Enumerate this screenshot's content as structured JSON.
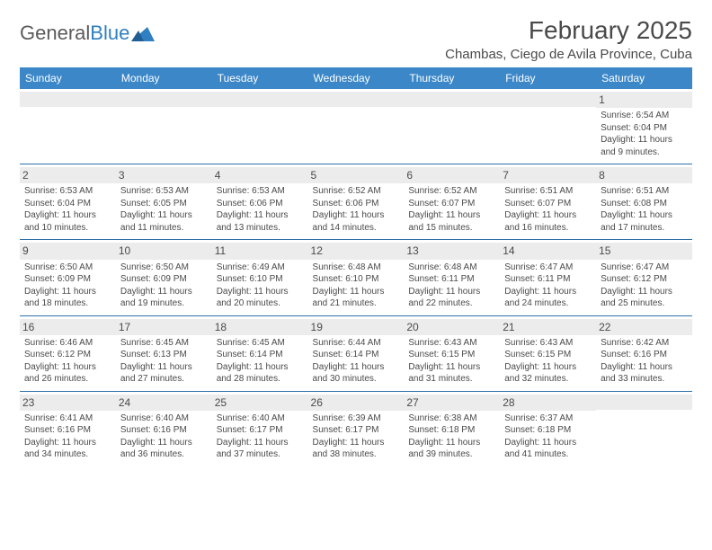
{
  "logo": {
    "word1": "General",
    "word2": "Blue"
  },
  "title": "February 2025",
  "location": "Chambas, Ciego de Avila Province, Cuba",
  "colors": {
    "header_bg": "#3b87c8",
    "header_text": "#ffffff",
    "rule": "#2f6fa8",
    "daynum_bg": "#ececec",
    "body_text": "#4a4a4a",
    "logo_blue": "#2f7fc1"
  },
  "weekdays": [
    "Sunday",
    "Monday",
    "Tuesday",
    "Wednesday",
    "Thursday",
    "Friday",
    "Saturday"
  ],
  "weeks": [
    [
      null,
      null,
      null,
      null,
      null,
      null,
      {
        "n": "1",
        "sunrise": "Sunrise: 6:54 AM",
        "sunset": "Sunset: 6:04 PM",
        "daylight": "Daylight: 11 hours and 9 minutes."
      }
    ],
    [
      {
        "n": "2",
        "sunrise": "Sunrise: 6:53 AM",
        "sunset": "Sunset: 6:04 PM",
        "daylight": "Daylight: 11 hours and 10 minutes."
      },
      {
        "n": "3",
        "sunrise": "Sunrise: 6:53 AM",
        "sunset": "Sunset: 6:05 PM",
        "daylight": "Daylight: 11 hours and 11 minutes."
      },
      {
        "n": "4",
        "sunrise": "Sunrise: 6:53 AM",
        "sunset": "Sunset: 6:06 PM",
        "daylight": "Daylight: 11 hours and 13 minutes."
      },
      {
        "n": "5",
        "sunrise": "Sunrise: 6:52 AM",
        "sunset": "Sunset: 6:06 PM",
        "daylight": "Daylight: 11 hours and 14 minutes."
      },
      {
        "n": "6",
        "sunrise": "Sunrise: 6:52 AM",
        "sunset": "Sunset: 6:07 PM",
        "daylight": "Daylight: 11 hours and 15 minutes."
      },
      {
        "n": "7",
        "sunrise": "Sunrise: 6:51 AM",
        "sunset": "Sunset: 6:07 PM",
        "daylight": "Daylight: 11 hours and 16 minutes."
      },
      {
        "n": "8",
        "sunrise": "Sunrise: 6:51 AM",
        "sunset": "Sunset: 6:08 PM",
        "daylight": "Daylight: 11 hours and 17 minutes."
      }
    ],
    [
      {
        "n": "9",
        "sunrise": "Sunrise: 6:50 AM",
        "sunset": "Sunset: 6:09 PM",
        "daylight": "Daylight: 11 hours and 18 minutes."
      },
      {
        "n": "10",
        "sunrise": "Sunrise: 6:50 AM",
        "sunset": "Sunset: 6:09 PM",
        "daylight": "Daylight: 11 hours and 19 minutes."
      },
      {
        "n": "11",
        "sunrise": "Sunrise: 6:49 AM",
        "sunset": "Sunset: 6:10 PM",
        "daylight": "Daylight: 11 hours and 20 minutes."
      },
      {
        "n": "12",
        "sunrise": "Sunrise: 6:48 AM",
        "sunset": "Sunset: 6:10 PM",
        "daylight": "Daylight: 11 hours and 21 minutes."
      },
      {
        "n": "13",
        "sunrise": "Sunrise: 6:48 AM",
        "sunset": "Sunset: 6:11 PM",
        "daylight": "Daylight: 11 hours and 22 minutes."
      },
      {
        "n": "14",
        "sunrise": "Sunrise: 6:47 AM",
        "sunset": "Sunset: 6:11 PM",
        "daylight": "Daylight: 11 hours and 24 minutes."
      },
      {
        "n": "15",
        "sunrise": "Sunrise: 6:47 AM",
        "sunset": "Sunset: 6:12 PM",
        "daylight": "Daylight: 11 hours and 25 minutes."
      }
    ],
    [
      {
        "n": "16",
        "sunrise": "Sunrise: 6:46 AM",
        "sunset": "Sunset: 6:12 PM",
        "daylight": "Daylight: 11 hours and 26 minutes."
      },
      {
        "n": "17",
        "sunrise": "Sunrise: 6:45 AM",
        "sunset": "Sunset: 6:13 PM",
        "daylight": "Daylight: 11 hours and 27 minutes."
      },
      {
        "n": "18",
        "sunrise": "Sunrise: 6:45 AM",
        "sunset": "Sunset: 6:14 PM",
        "daylight": "Daylight: 11 hours and 28 minutes."
      },
      {
        "n": "19",
        "sunrise": "Sunrise: 6:44 AM",
        "sunset": "Sunset: 6:14 PM",
        "daylight": "Daylight: 11 hours and 30 minutes."
      },
      {
        "n": "20",
        "sunrise": "Sunrise: 6:43 AM",
        "sunset": "Sunset: 6:15 PM",
        "daylight": "Daylight: 11 hours and 31 minutes."
      },
      {
        "n": "21",
        "sunrise": "Sunrise: 6:43 AM",
        "sunset": "Sunset: 6:15 PM",
        "daylight": "Daylight: 11 hours and 32 minutes."
      },
      {
        "n": "22",
        "sunrise": "Sunrise: 6:42 AM",
        "sunset": "Sunset: 6:16 PM",
        "daylight": "Daylight: 11 hours and 33 minutes."
      }
    ],
    [
      {
        "n": "23",
        "sunrise": "Sunrise: 6:41 AM",
        "sunset": "Sunset: 6:16 PM",
        "daylight": "Daylight: 11 hours and 34 minutes."
      },
      {
        "n": "24",
        "sunrise": "Sunrise: 6:40 AM",
        "sunset": "Sunset: 6:16 PM",
        "daylight": "Daylight: 11 hours and 36 minutes."
      },
      {
        "n": "25",
        "sunrise": "Sunrise: 6:40 AM",
        "sunset": "Sunset: 6:17 PM",
        "daylight": "Daylight: 11 hours and 37 minutes."
      },
      {
        "n": "26",
        "sunrise": "Sunrise: 6:39 AM",
        "sunset": "Sunset: 6:17 PM",
        "daylight": "Daylight: 11 hours and 38 minutes."
      },
      {
        "n": "27",
        "sunrise": "Sunrise: 6:38 AM",
        "sunset": "Sunset: 6:18 PM",
        "daylight": "Daylight: 11 hours and 39 minutes."
      },
      {
        "n": "28",
        "sunrise": "Sunrise: 6:37 AM",
        "sunset": "Sunset: 6:18 PM",
        "daylight": "Daylight: 11 hours and 41 minutes."
      },
      null
    ]
  ]
}
